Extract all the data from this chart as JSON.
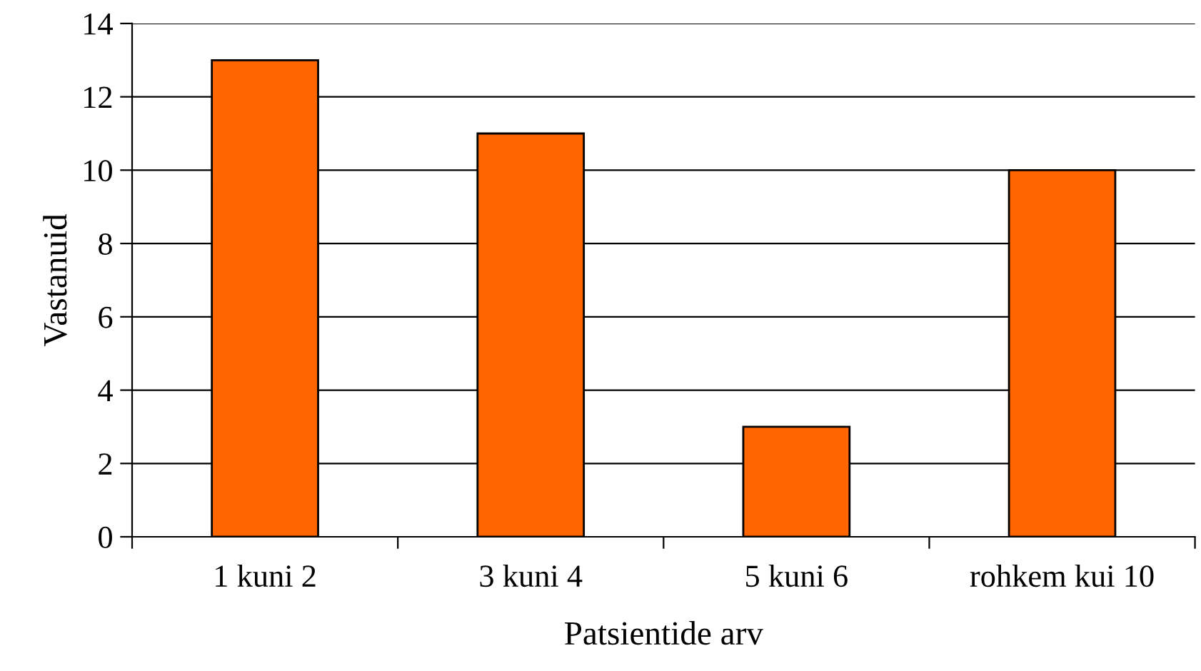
{
  "chart_data": {
    "type": "bar",
    "xlabel": "Patsientide arv",
    "ylabel": "Vastanuid",
    "categories": [
      "1 kuni 2",
      "3 kuni 4",
      "5 kuni 6",
      "rohkem kui 10"
    ],
    "series": [
      {
        "color": "#ff6600",
        "values": [
          13,
          11,
          3,
          10
        ]
      }
    ],
    "ylim": [
      0,
      14
    ],
    "yticks": [
      0,
      2,
      4,
      6,
      8,
      10,
      12,
      14
    ],
    "grid": "y",
    "legend": false
  }
}
